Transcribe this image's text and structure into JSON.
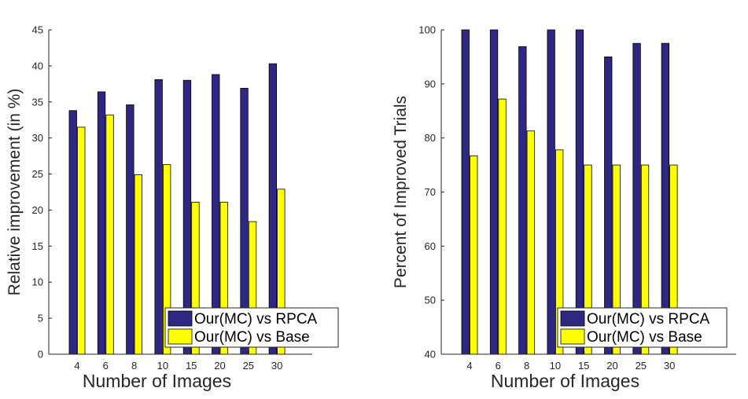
{
  "colors": {
    "series1": "#2e2882",
    "series2": "#ffff00"
  },
  "chart_data": [
    {
      "type": "bar",
      "title": "",
      "xlabel": "Number of Images",
      "ylabel": "Relative improvement (in %)",
      "categories": [
        "4",
        "6",
        "8",
        "10",
        "15",
        "20",
        "25",
        "30"
      ],
      "ylim": [
        0,
        45
      ],
      "yticks": [
        0,
        5,
        10,
        15,
        20,
        25,
        30,
        35,
        40,
        45
      ],
      "legend": "bottom-right",
      "series": [
        {
          "name": "Our(MC) vs RPCA",
          "values": [
            33.8,
            36.4,
            34.6,
            38.1,
            38.0,
            38.8,
            36.9,
            40.3
          ]
        },
        {
          "name": "Our(MC) vs Base",
          "values": [
            31.5,
            33.2,
            24.9,
            26.3,
            21.1,
            21.1,
            18.4,
            22.9
          ]
        }
      ]
    },
    {
      "type": "bar",
      "title": "",
      "xlabel": "Number of Images",
      "ylabel": "Percent of Improved Trials",
      "categories": [
        "4",
        "6",
        "8",
        "10",
        "15",
        "20",
        "25",
        "30"
      ],
      "ylim": [
        40,
        100
      ],
      "yticks": [
        40,
        50,
        60,
        70,
        80,
        90,
        100
      ],
      "legend": "bottom-right",
      "series": [
        {
          "name": "Our(MC) vs RPCA",
          "values": [
            100,
            100,
            96.9,
            100,
            100,
            95.0,
            97.5,
            97.5
          ]
        },
        {
          "name": "Our(MC) vs Base",
          "values": [
            76.7,
            87.2,
            81.3,
            77.8,
            75.0,
            75.0,
            75.0,
            75.0
          ]
        }
      ]
    }
  ]
}
